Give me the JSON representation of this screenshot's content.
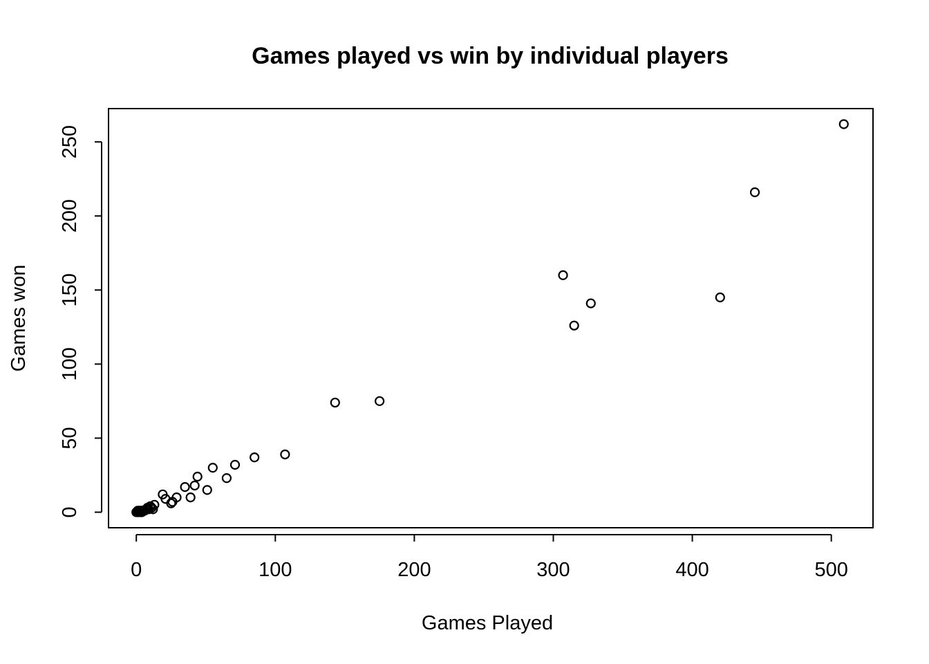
{
  "chart_data": {
    "type": "scatter",
    "title": "Games played vs win by individual players",
    "xlabel": "Games Played",
    "ylabel": "Games won",
    "xlim": [
      -20,
      530
    ],
    "ylim": [
      -10.5,
      272.5
    ],
    "xticks": [
      0,
      100,
      200,
      300,
      400,
      500
    ],
    "yticks": [
      0,
      50,
      100,
      150,
      200,
      250
    ],
    "grid": false,
    "legend": "none",
    "marker": "open-circle",
    "color": "#000000",
    "points": [
      {
        "x": 0,
        "y": 0
      },
      {
        "x": 1,
        "y": 0
      },
      {
        "x": 1,
        "y": 1
      },
      {
        "x": 2,
        "y": 0
      },
      {
        "x": 2,
        "y": 1
      },
      {
        "x": 3,
        "y": 0
      },
      {
        "x": 3,
        "y": 1
      },
      {
        "x": 4,
        "y": 0
      },
      {
        "x": 4,
        "y": 1
      },
      {
        "x": 5,
        "y": 1
      },
      {
        "x": 6,
        "y": 1
      },
      {
        "x": 7,
        "y": 2
      },
      {
        "x": 8,
        "y": 3
      },
      {
        "x": 9,
        "y": 2
      },
      {
        "x": 10,
        "y": 4
      },
      {
        "x": 11,
        "y": 3
      },
      {
        "x": 12,
        "y": 2
      },
      {
        "x": 13,
        "y": 5
      },
      {
        "x": 19,
        "y": 12
      },
      {
        "x": 21,
        "y": 9
      },
      {
        "x": 25,
        "y": 6
      },
      {
        "x": 26,
        "y": 7
      },
      {
        "x": 29,
        "y": 10
      },
      {
        "x": 35,
        "y": 17
      },
      {
        "x": 39,
        "y": 10
      },
      {
        "x": 42,
        "y": 18
      },
      {
        "x": 44,
        "y": 24
      },
      {
        "x": 51,
        "y": 15
      },
      {
        "x": 55,
        "y": 30
      },
      {
        "x": 65,
        "y": 23
      },
      {
        "x": 71,
        "y": 32
      },
      {
        "x": 85,
        "y": 37
      },
      {
        "x": 107,
        "y": 39
      },
      {
        "x": 143,
        "y": 74
      },
      {
        "x": 175,
        "y": 75
      },
      {
        "x": 307,
        "y": 160
      },
      {
        "x": 315,
        "y": 126
      },
      {
        "x": 327,
        "y": 141
      },
      {
        "x": 420,
        "y": 145
      },
      {
        "x": 445,
        "y": 216
      },
      {
        "x": 509,
        "y": 262
      }
    ]
  }
}
